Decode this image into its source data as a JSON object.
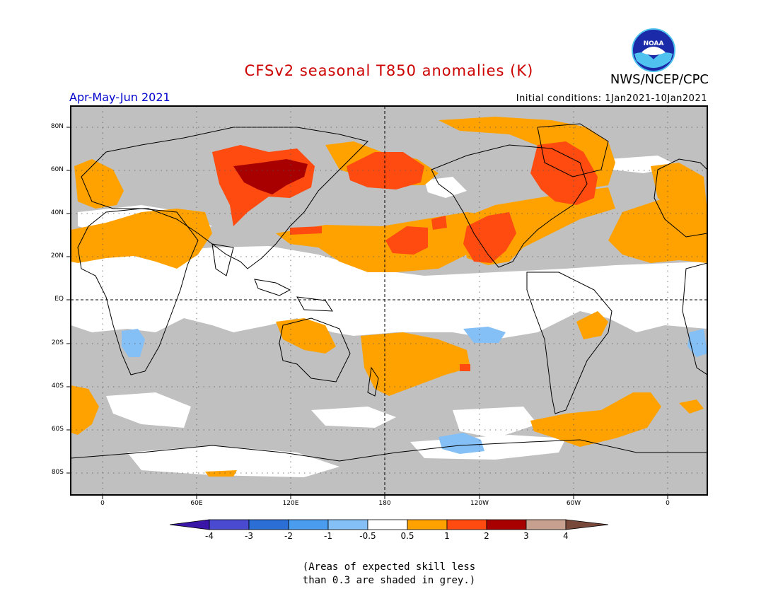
{
  "header": {
    "title": "CFSv2 seasonal T850 anomalies (K)",
    "season": "Apr-May-Jun 2021",
    "initial_conditions": "Initial conditions: 1Jan2021-10Jan2021",
    "agency": "NWS/NCEP/CPC",
    "logo_text": "NOAA"
  },
  "colors": {
    "title": "#cc0000",
    "season": "#0000cc",
    "grey_skill": "#c0c0c0",
    "ocean_white": "#ffffff",
    "levels": [
      "#3a16a8",
      "#4a4ad0",
      "#2a6ed6",
      "#4a9cee",
      "#84bff5",
      "#ffffff",
      "#ffa200",
      "#ff4a10",
      "#a80000",
      "#c8a090",
      "#78483a"
    ]
  },
  "map": {
    "lat_labels": [
      "80N",
      "60N",
      "40N",
      "20N",
      "EQ",
      "20S",
      "40S",
      "60S",
      "80S"
    ],
    "lon_labels": [
      "0",
      "60E",
      "120E",
      "180",
      "120W",
      "60W",
      "0"
    ]
  },
  "colorbar": {
    "labels": [
      "-4",
      "-3",
      "-2",
      "-1",
      "-0.5",
      "0.5",
      "1",
      "2",
      "3",
      "4"
    ]
  },
  "footer": {
    "note_line1": "(Areas of expected skill less",
    "note_line2": "than 0.3 are shaded in grey.)"
  }
}
